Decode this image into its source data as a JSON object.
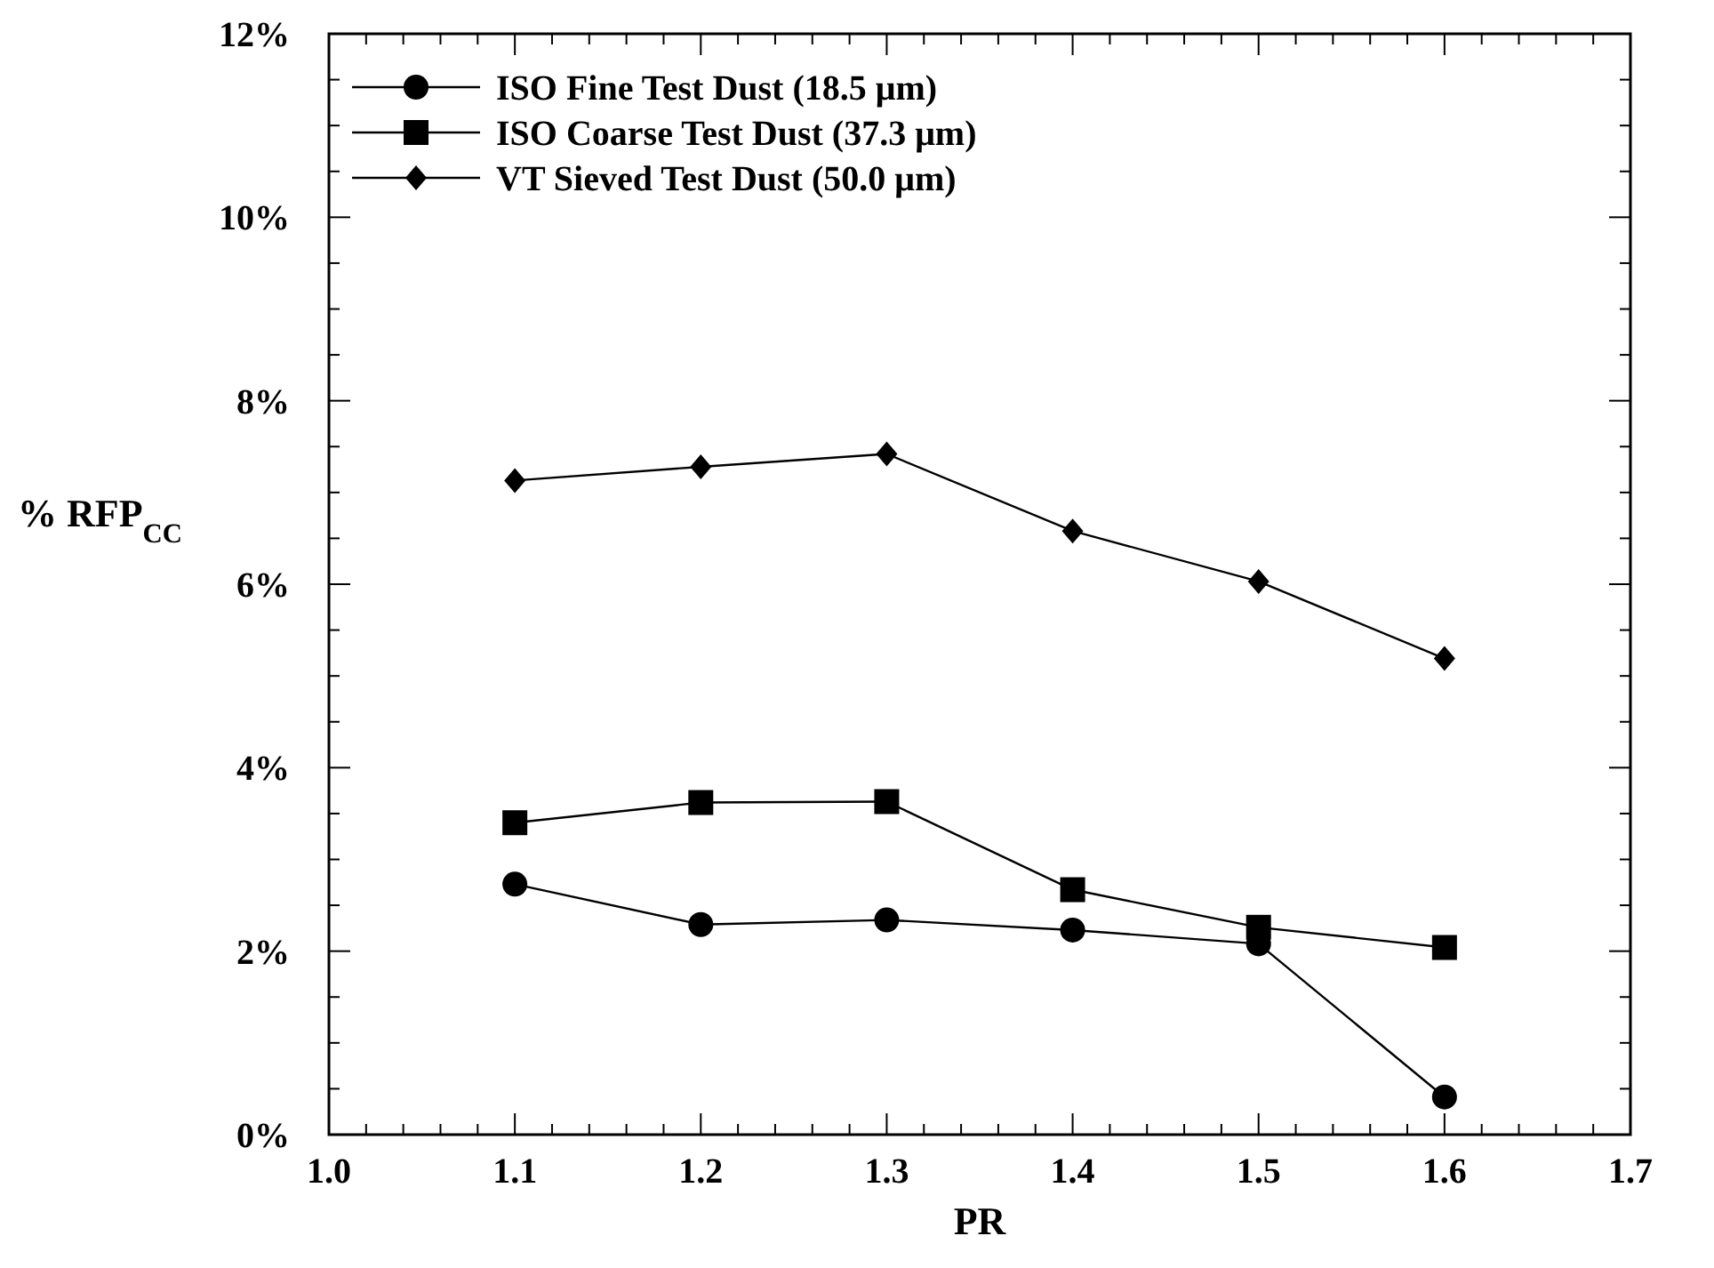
{
  "chart_data": {
    "type": "line",
    "xlabel": "PR",
    "ylabel": "% RFP$_{CC}$",
    "x": [
      1.1,
      1.2,
      1.3,
      1.4,
      1.5,
      1.6
    ],
    "series": [
      {
        "name": "ISO Fine Test Dust (18.5 μm)",
        "color": "#000000",
        "marker": "circle",
        "values": [
          2.73,
          2.29,
          2.34,
          2.23,
          2.08,
          0.41
        ]
      },
      {
        "name": "ISO Coarse Test Dust (37.3 μm)",
        "color": "#000000",
        "marker": "square",
        "values": [
          3.4,
          3.62,
          3.63,
          2.67,
          2.26,
          2.04
        ]
      },
      {
        "name": "VT Sieved Test Dust (50.0 μm)",
        "color": "#000000",
        "marker": "diamond",
        "values": [
          7.13,
          7.28,
          7.42,
          6.58,
          6.03,
          5.19
        ]
      }
    ],
    "xlim": [
      1.0,
      1.7
    ],
    "xticks": [
      {
        "value": 1.0,
        "label": "1.0"
      },
      1.1,
      1.2,
      1.3,
      1.4,
      1.5,
      1.6,
      1.7
    ],
    "ylim": [
      0,
      12
    ],
    "yticks": [
      {
        "value": 0,
        "label": "0%"
      },
      {
        "value": 2,
        "label": "2%"
      },
      {
        "value": 4,
        "label": "4%"
      },
      {
        "value": 6,
        "label": "6%"
      },
      {
        "value": 8,
        "label": "8%"
      },
      {
        "value": 10,
        "label": "10%"
      },
      {
        "value": 12,
        "label": "12%"
      }
    ],
    "grid": false,
    "legend": "top left",
    "line_style": "solid"
  }
}
